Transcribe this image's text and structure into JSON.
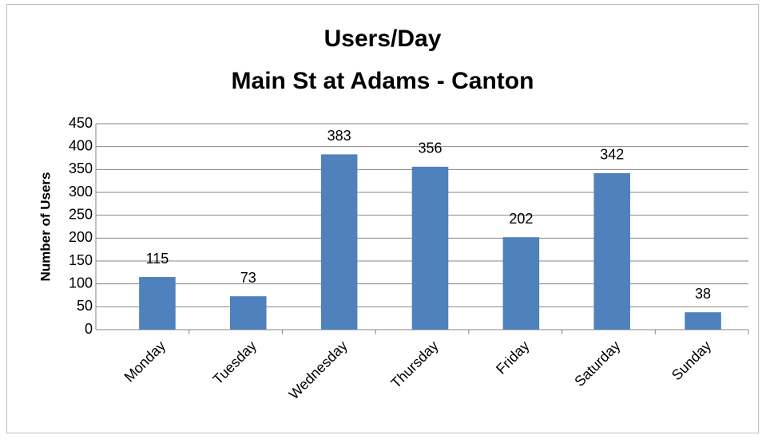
{
  "chart_data": {
    "type": "bar",
    "title": "Users/Day",
    "subtitle": "Main St at Adams - Canton",
    "y_label": "Number of Users",
    "categories": [
      "Monday",
      "Tuesday",
      "Wednesday",
      "Thursday",
      "Friday",
      "Saturday",
      "Sunday"
    ],
    "values": [
      115,
      73,
      383,
      356,
      202,
      342,
      38
    ],
    "color": "#4f81bd",
    "ylim": [
      0,
      450
    ],
    "yticks": [
      0,
      50,
      100,
      150,
      200,
      250,
      300,
      350,
      400,
      450
    ],
    "grid": true
  }
}
